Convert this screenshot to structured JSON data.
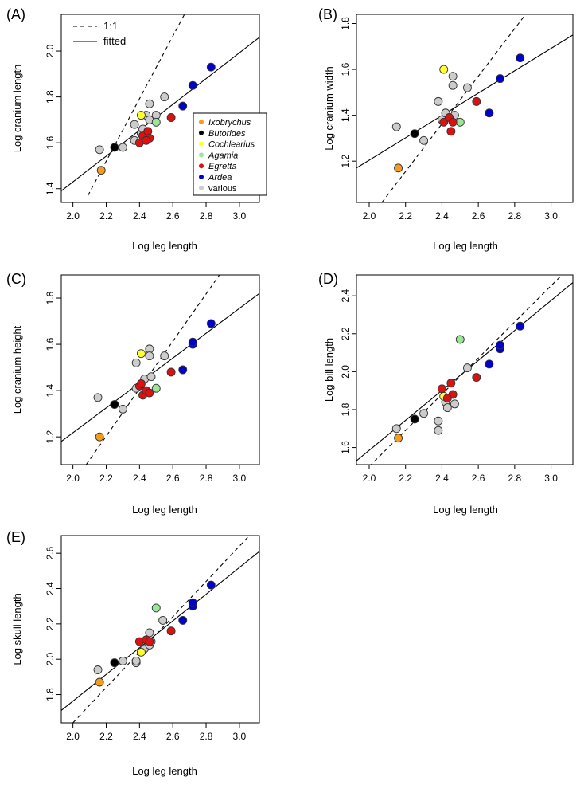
{
  "legend": {
    "line_items": [
      {
        "label": "1:1",
        "style": "dashed"
      },
      {
        "label": "fitted",
        "style": "solid"
      }
    ],
    "genera": [
      {
        "label": "Ixobrychus",
        "color": "#f39c1e",
        "italic": true
      },
      {
        "label": "Butorides",
        "color": "#000000",
        "italic": true
      },
      {
        "label": "Cochlearius",
        "color": "#ffff33",
        "italic": true
      },
      {
        "label": "Agamia",
        "color": "#99e699",
        "italic": true
      },
      {
        "label": "Egretta",
        "color": "#dd1111",
        "italic": true
      },
      {
        "label": "Ardea",
        "color": "#0000cc",
        "italic": true
      },
      {
        "label": "various",
        "color": "#cccccc",
        "italic": false
      }
    ]
  },
  "chart_data": [
    {
      "panel_label": "(A)",
      "type": "scatter",
      "xlabel": "Log leg length",
      "ylabel": "Log cranium length",
      "xlim": [
        1.93,
        3.12
      ],
      "ylim": [
        1.34,
        2.16
      ],
      "xticks": [
        "2.0",
        "2.2",
        "2.4",
        "2.6",
        "2.8",
        "3.0"
      ],
      "yticks": [
        "1.4",
        "1.6",
        "1.8",
        "2.0"
      ],
      "fitted": {
        "x": [
          1.93,
          3.12
        ],
        "y": [
          1.39,
          2.06
        ]
      },
      "one_to_one": {
        "x": [
          2.09,
          2.67
        ],
        "y": [
          1.37,
          2.16
        ]
      },
      "points": [
        {
          "x": 2.16,
          "y": 1.57,
          "g": "various"
        },
        {
          "x": 2.3,
          "y": 1.58,
          "g": "various"
        },
        {
          "x": 2.37,
          "y": 1.61,
          "g": "various"
        },
        {
          "x": 2.37,
          "y": 1.68,
          "g": "various"
        },
        {
          "x": 2.41,
          "y": 1.64,
          "g": "various"
        },
        {
          "x": 2.42,
          "y": 1.66,
          "g": "various"
        },
        {
          "x": 2.44,
          "y": 1.72,
          "g": "various"
        },
        {
          "x": 2.46,
          "y": 1.77,
          "g": "various"
        },
        {
          "x": 2.46,
          "y": 1.7,
          "g": "various"
        },
        {
          "x": 2.55,
          "y": 1.8,
          "g": "various"
        },
        {
          "x": 2.5,
          "y": 1.72,
          "g": "various"
        },
        {
          "x": 2.17,
          "y": 1.48,
          "g": "Ixobrychus"
        },
        {
          "x": 2.25,
          "y": 1.58,
          "g": "Butorides"
        },
        {
          "x": 2.41,
          "y": 1.72,
          "g": "Cochlearius"
        },
        {
          "x": 2.5,
          "y": 1.69,
          "g": "Agamia"
        },
        {
          "x": 2.4,
          "y": 1.6,
          "g": "Egretta"
        },
        {
          "x": 2.42,
          "y": 1.63,
          "g": "Egretta"
        },
        {
          "x": 2.45,
          "y": 1.65,
          "g": "Egretta"
        },
        {
          "x": 2.46,
          "y": 1.62,
          "g": "Egretta"
        },
        {
          "x": 2.44,
          "y": 1.61,
          "g": "Egretta"
        },
        {
          "x": 2.59,
          "y": 1.71,
          "g": "Egretta"
        },
        {
          "x": 2.66,
          "y": 1.76,
          "g": "Ardea"
        },
        {
          "x": 2.72,
          "y": 1.85,
          "g": "Ardea"
        },
        {
          "x": 2.83,
          "y": 1.93,
          "g": "Ardea"
        }
      ]
    },
    {
      "panel_label": "(B)",
      "type": "scatter",
      "xlabel": "Log leg length",
      "ylabel": "Log cranium width",
      "xlim": [
        1.93,
        3.12
      ],
      "ylim": [
        1.02,
        1.84
      ],
      "xticks": [
        "2.0",
        "2.2",
        "2.4",
        "2.6",
        "2.8",
        "3.0"
      ],
      "yticks": [
        "1.2",
        "1.4",
        "1.6",
        "1.8"
      ],
      "fitted": {
        "x": [
          1.93,
          3.12
        ],
        "y": [
          1.17,
          1.75
        ]
      },
      "one_to_one": {
        "x": [
          2.07,
          2.86
        ],
        "y": [
          1.02,
          1.84
        ]
      },
      "points": [
        {
          "x": 2.15,
          "y": 1.35,
          "g": "various"
        },
        {
          "x": 2.3,
          "y": 1.29,
          "g": "various"
        },
        {
          "x": 2.38,
          "y": 1.46,
          "g": "various"
        },
        {
          "x": 2.4,
          "y": 1.38,
          "g": "various"
        },
        {
          "x": 2.42,
          "y": 1.41,
          "g": "various"
        },
        {
          "x": 2.46,
          "y": 1.57,
          "g": "various"
        },
        {
          "x": 2.46,
          "y": 1.53,
          "g": "various"
        },
        {
          "x": 2.54,
          "y": 1.52,
          "g": "various"
        },
        {
          "x": 2.47,
          "y": 1.4,
          "g": "various"
        },
        {
          "x": 2.16,
          "y": 1.17,
          "g": "Ixobrychus"
        },
        {
          "x": 2.25,
          "y": 1.32,
          "g": "Butorides"
        },
        {
          "x": 2.41,
          "y": 1.6,
          "g": "Cochlearius"
        },
        {
          "x": 2.5,
          "y": 1.37,
          "g": "Agamia"
        },
        {
          "x": 2.41,
          "y": 1.37,
          "g": "Egretta"
        },
        {
          "x": 2.44,
          "y": 1.39,
          "g": "Egretta"
        },
        {
          "x": 2.46,
          "y": 1.37,
          "g": "Egretta"
        },
        {
          "x": 2.45,
          "y": 1.33,
          "g": "Egretta"
        },
        {
          "x": 2.59,
          "y": 1.46,
          "g": "Egretta"
        },
        {
          "x": 2.66,
          "y": 1.41,
          "g": "Ardea"
        },
        {
          "x": 2.72,
          "y": 1.56,
          "g": "Ardea"
        },
        {
          "x": 2.83,
          "y": 1.65,
          "g": "Ardea"
        }
      ]
    },
    {
      "panel_label": "(C)",
      "type": "scatter",
      "xlabel": "Log leg length",
      "ylabel": "Log cranium height",
      "xlim": [
        1.93,
        3.12
      ],
      "ylim": [
        1.08,
        1.9
      ],
      "xticks": [
        "2.0",
        "2.2",
        "2.4",
        "2.6",
        "2.8",
        "3.0"
      ],
      "yticks": [
        "1.2",
        "1.4",
        "1.6",
        "1.8"
      ],
      "fitted": {
        "x": [
          1.93,
          3.12
        ],
        "y": [
          1.18,
          1.82
        ]
      },
      "one_to_one": {
        "x": [
          2.08,
          2.88
        ],
        "y": [
          1.08,
          1.9
        ]
      },
      "points": [
        {
          "x": 2.15,
          "y": 1.37,
          "g": "various"
        },
        {
          "x": 2.3,
          "y": 1.32,
          "g": "various"
        },
        {
          "x": 2.38,
          "y": 1.41,
          "g": "various"
        },
        {
          "x": 2.38,
          "y": 1.52,
          "g": "various"
        },
        {
          "x": 2.43,
          "y": 1.45,
          "g": "various"
        },
        {
          "x": 2.46,
          "y": 1.58,
          "g": "various"
        },
        {
          "x": 2.46,
          "y": 1.55,
          "g": "various"
        },
        {
          "x": 2.55,
          "y": 1.55,
          "g": "various"
        },
        {
          "x": 2.47,
          "y": 1.46,
          "g": "various"
        },
        {
          "x": 2.16,
          "y": 1.2,
          "g": "Ixobrychus"
        },
        {
          "x": 2.25,
          "y": 1.34,
          "g": "Butorides"
        },
        {
          "x": 2.41,
          "y": 1.56,
          "g": "Cochlearius"
        },
        {
          "x": 2.5,
          "y": 1.41,
          "g": "Agamia"
        },
        {
          "x": 2.4,
          "y": 1.42,
          "g": "Egretta"
        },
        {
          "x": 2.42,
          "y": 1.38,
          "g": "Egretta"
        },
        {
          "x": 2.44,
          "y": 1.4,
          "g": "Egretta"
        },
        {
          "x": 2.46,
          "y": 1.39,
          "g": "Egretta"
        },
        {
          "x": 2.41,
          "y": 1.43,
          "g": "Egretta"
        },
        {
          "x": 2.59,
          "y": 1.48,
          "g": "Egretta"
        },
        {
          "x": 2.66,
          "y": 1.49,
          "g": "Ardea"
        },
        {
          "x": 2.72,
          "y": 1.6,
          "g": "Ardea"
        },
        {
          "x": 2.72,
          "y": 1.61,
          "g": "Ardea"
        },
        {
          "x": 2.83,
          "y": 1.69,
          "g": "Ardea"
        }
      ]
    },
    {
      "panel_label": "(D)",
      "type": "scatter",
      "xlabel": "Log leg length",
      "ylabel": "Log bill length",
      "xlim": [
        1.93,
        3.12
      ],
      "ylim": [
        1.51,
        2.51
      ],
      "xticks": [
        "2.0",
        "2.2",
        "2.4",
        "2.6",
        "2.8",
        "3.0"
      ],
      "yticks": [
        "1.6",
        "1.8",
        "2.0",
        "2.2",
        "2.4"
      ],
      "fitted": {
        "x": [
          1.93,
          3.12
        ],
        "y": [
          1.53,
          2.47
        ]
      },
      "one_to_one": {
        "x": [
          2.0,
          3.06
        ],
        "y": [
          1.5,
          2.51
        ]
      },
      "points": [
        {
          "x": 2.15,
          "y": 1.7,
          "g": "various"
        },
        {
          "x": 2.3,
          "y": 1.78,
          "g": "various"
        },
        {
          "x": 2.38,
          "y": 1.74,
          "g": "various"
        },
        {
          "x": 2.38,
          "y": 1.69,
          "g": "various"
        },
        {
          "x": 2.42,
          "y": 1.84,
          "g": "various"
        },
        {
          "x": 2.43,
          "y": 1.81,
          "g": "various"
        },
        {
          "x": 2.47,
          "y": 1.83,
          "g": "various"
        },
        {
          "x": 2.54,
          "y": 2.02,
          "g": "various"
        },
        {
          "x": 2.16,
          "y": 1.65,
          "g": "Ixobrychus"
        },
        {
          "x": 2.25,
          "y": 1.75,
          "g": "Butorides"
        },
        {
          "x": 2.41,
          "y": 1.87,
          "g": "Cochlearius"
        },
        {
          "x": 2.5,
          "y": 2.17,
          "g": "Agamia"
        },
        {
          "x": 2.4,
          "y": 1.91,
          "g": "Egretta"
        },
        {
          "x": 2.45,
          "y": 1.94,
          "g": "Egretta"
        },
        {
          "x": 2.46,
          "y": 1.88,
          "g": "Egretta"
        },
        {
          "x": 2.43,
          "y": 1.86,
          "g": "Egretta"
        },
        {
          "x": 2.59,
          "y": 1.97,
          "g": "Egretta"
        },
        {
          "x": 2.66,
          "y": 2.04,
          "g": "Ardea"
        },
        {
          "x": 2.72,
          "y": 2.12,
          "g": "Ardea"
        },
        {
          "x": 2.72,
          "y": 2.14,
          "g": "Ardea"
        },
        {
          "x": 2.83,
          "y": 2.24,
          "g": "Ardea"
        }
      ]
    },
    {
      "panel_label": "(E)",
      "type": "scatter",
      "xlabel": "Log leg length",
      "ylabel": "Log skull length",
      "xlim": [
        1.93,
        3.12
      ],
      "ylim": [
        1.64,
        2.7
      ],
      "xticks": [
        "2.0",
        "2.2",
        "2.4",
        "2.6",
        "2.8",
        "3.0"
      ],
      "yticks": [
        "1.8",
        "2.0",
        "2.2",
        "2.4",
        "2.6"
      ],
      "fitted": {
        "x": [
          1.93,
          3.12
        ],
        "y": [
          1.71,
          2.61
        ]
      },
      "one_to_one": {
        "x": [
          2.0,
          3.06
        ],
        "y": [
          1.64,
          2.7
        ]
      },
      "points": [
        {
          "x": 2.15,
          "y": 1.94,
          "g": "various"
        },
        {
          "x": 2.3,
          "y": 1.99,
          "g": "various"
        },
        {
          "x": 2.38,
          "y": 1.98,
          "g": "various"
        },
        {
          "x": 2.38,
          "y": 1.99,
          "g": "various"
        },
        {
          "x": 2.42,
          "y": 2.05,
          "g": "various"
        },
        {
          "x": 2.43,
          "y": 2.06,
          "g": "various"
        },
        {
          "x": 2.46,
          "y": 2.08,
          "g": "various"
        },
        {
          "x": 2.47,
          "y": 2.1,
          "g": "various"
        },
        {
          "x": 2.46,
          "y": 2.15,
          "g": "various"
        },
        {
          "x": 2.54,
          "y": 2.22,
          "g": "various"
        },
        {
          "x": 2.16,
          "y": 1.87,
          "g": "Ixobrychus"
        },
        {
          "x": 2.25,
          "y": 1.98,
          "g": "Butorides"
        },
        {
          "x": 2.41,
          "y": 2.04,
          "g": "Cochlearius"
        },
        {
          "x": 2.5,
          "y": 2.29,
          "g": "Agamia"
        },
        {
          "x": 2.4,
          "y": 2.1,
          "g": "Egretta"
        },
        {
          "x": 2.44,
          "y": 2.11,
          "g": "Egretta"
        },
        {
          "x": 2.46,
          "y": 2.1,
          "g": "Egretta"
        },
        {
          "x": 2.59,
          "y": 2.16,
          "g": "Egretta"
        },
        {
          "x": 2.66,
          "y": 2.22,
          "g": "Ardea"
        },
        {
          "x": 2.72,
          "y": 2.3,
          "g": "Ardea"
        },
        {
          "x": 2.72,
          "y": 2.32,
          "g": "Ardea"
        },
        {
          "x": 2.83,
          "y": 2.42,
          "g": "Ardea"
        }
      ]
    }
  ]
}
